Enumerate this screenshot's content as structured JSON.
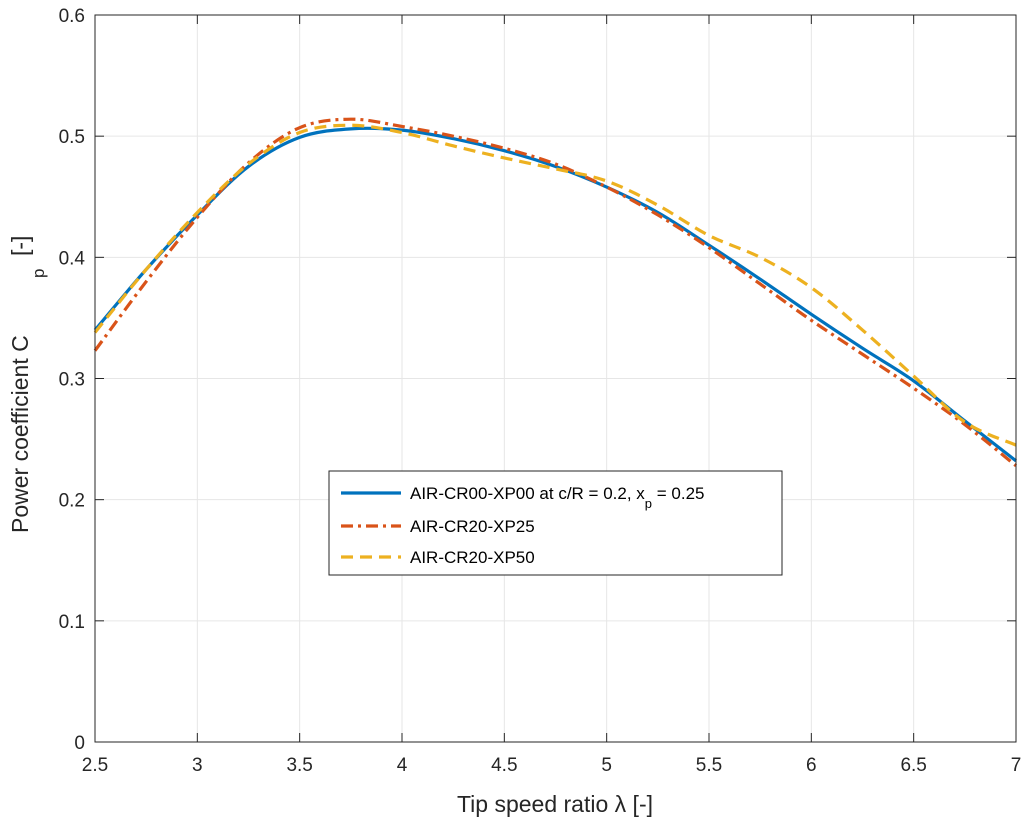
{
  "chart_data": {
    "type": "line",
    "xlabel": "Tip speed ratio λ [-]",
    "ylabel_main": "Power coefficient C",
    "ylabel_sub": "p",
    "ylabel_unit": "[-]",
    "xlim": [
      2.5,
      7
    ],
    "ylim": [
      0,
      0.6
    ],
    "x_ticks": [
      "2.5",
      "3",
      "3.5",
      "4",
      "4.5",
      "5",
      "5.5",
      "6",
      "6.5",
      "7"
    ],
    "y_ticks": [
      "0",
      "0.1",
      "0.2",
      "0.3",
      "0.4",
      "0.5",
      "0.6"
    ],
    "grid": true,
    "legend_position": "center",
    "series": [
      {
        "name": "AIR-CR00-XP00 at c/R = 0.2, x = 0.25",
        "legend_parts": [
          "AIR-CR00-XP00 at c/R = 0.2, x",
          "p",
          " = 0.25"
        ],
        "color": "#0072BD",
        "style": "solid",
        "x": [
          2.5,
          2.75,
          3.0,
          3.25,
          3.5,
          3.75,
          4.0,
          4.25,
          4.5,
          4.75,
          5.0,
          5.25,
          5.5,
          5.75,
          6.0,
          6.25,
          6.5,
          6.75,
          7.0
        ],
        "y": [
          0.34,
          0.39,
          0.435,
          0.475,
          0.499,
          0.506,
          0.505,
          0.498,
          0.488,
          0.475,
          0.458,
          0.437,
          0.41,
          0.382,
          0.353,
          0.325,
          0.298,
          0.265,
          0.232
        ]
      },
      {
        "name": "AIR-CR20-XP25",
        "color": "#D95319",
        "style": "dashdot",
        "x": [
          2.5,
          2.75,
          3.0,
          3.25,
          3.5,
          3.75,
          4.0,
          4.25,
          4.5,
          4.75,
          5.0,
          5.25,
          5.5,
          5.75,
          6.0,
          6.25,
          6.5,
          6.75,
          7.0
        ],
        "y": [
          0.323,
          0.38,
          0.433,
          0.478,
          0.507,
          0.514,
          0.508,
          0.5,
          0.49,
          0.477,
          0.458,
          0.435,
          0.408,
          0.378,
          0.348,
          0.32,
          0.292,
          0.262,
          0.228
        ]
      },
      {
        "name": "AIR-CR20-XP50",
        "color": "#EDB120",
        "style": "dashed",
        "x": [
          2.5,
          2.75,
          3.0,
          3.25,
          3.5,
          3.75,
          4.0,
          4.25,
          4.5,
          4.75,
          5.0,
          5.25,
          5.5,
          5.75,
          6.0,
          6.25,
          6.5,
          6.75,
          7.0
        ],
        "y": [
          0.338,
          0.39,
          0.437,
          0.477,
          0.503,
          0.509,
          0.503,
          0.492,
          0.482,
          0.473,
          0.463,
          0.443,
          0.418,
          0.4,
          0.375,
          0.34,
          0.302,
          0.264,
          0.245
        ]
      }
    ]
  }
}
